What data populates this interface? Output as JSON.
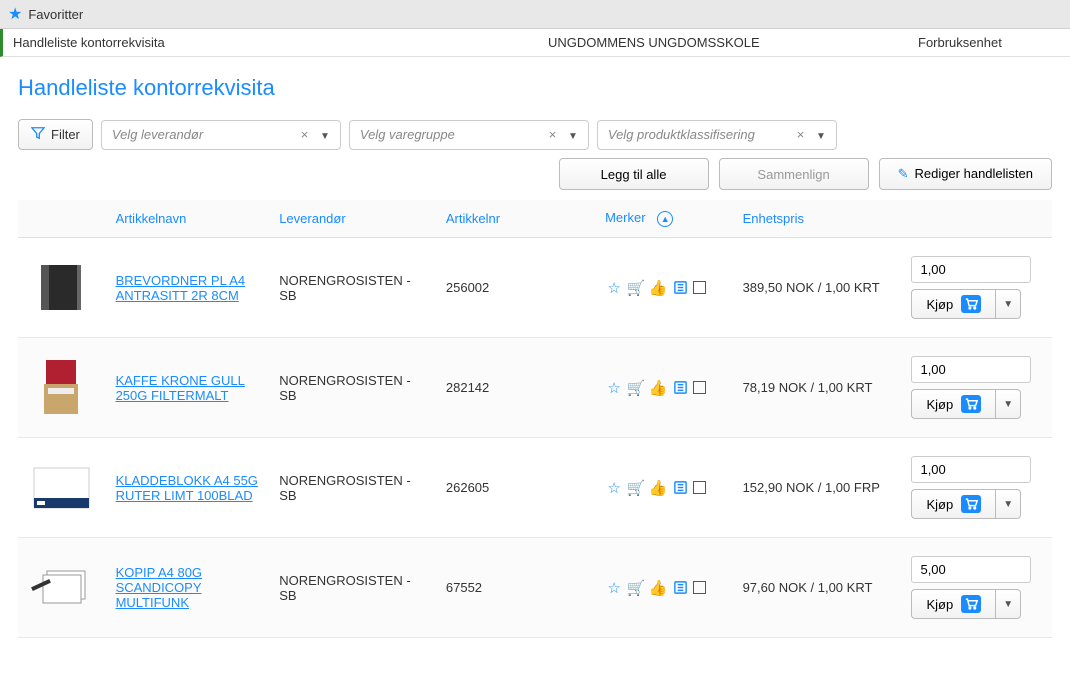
{
  "favorites_label": "Favoritter",
  "info": {
    "list_name": "Handleliste kontorrekvisita",
    "org": "UNGDOMMENS UNGDOMSSKOLE",
    "unit": "Forbruksenhet"
  },
  "page_title": "Handleliste kontorrekvisita",
  "filter_label": "Filter",
  "combos": {
    "supplier_placeholder": "Velg leverandør",
    "group_placeholder": "Velg varegruppe",
    "class_placeholder": "Velg produktklassifisering"
  },
  "actions": {
    "add_all": "Legg til alle",
    "compare": "Sammenlign",
    "edit_list": "Rediger handlelisten"
  },
  "columns": {
    "name": "Artikkelnavn",
    "supplier": "Leverandør",
    "artnr": "Artikkelnr",
    "marks": "Merker",
    "price": "Enhetspris"
  },
  "buy_label": "Kjøp",
  "rows": [
    {
      "name": "BREVORDNER PL A4 ANTRASITT 2R 8CM",
      "supplier": "NORENGROSISTEN - SB",
      "artnr": "256002",
      "price": "389,50 NOK / 1,00 KRT",
      "qty": "1,00",
      "thumb": "binder"
    },
    {
      "name": "KAFFE KRONE GULL 250G FILTERMALT",
      "supplier": "NORENGROSISTEN - SB",
      "artnr": "282142",
      "price": "78,19 NOK / 1,00 KRT",
      "qty": "1,00",
      "thumb": "coffee"
    },
    {
      "name": "KLADDEBLOKK A4 55G RUTER LIMT 100BLAD",
      "supplier": "NORENGROSISTEN - SB",
      "artnr": "262605",
      "price": "152,90 NOK / 1,00 FRP",
      "qty": "1,00",
      "thumb": "notepad"
    },
    {
      "name": "KOPIP A4 80G SCANDICOPY MULTIFUNK",
      "supplier": "NORENGROSISTEN - SB",
      "artnr": "67552",
      "price": "97,60 NOK / 1,00 KRT",
      "qty": "5,00",
      "thumb": "paper"
    }
  ]
}
